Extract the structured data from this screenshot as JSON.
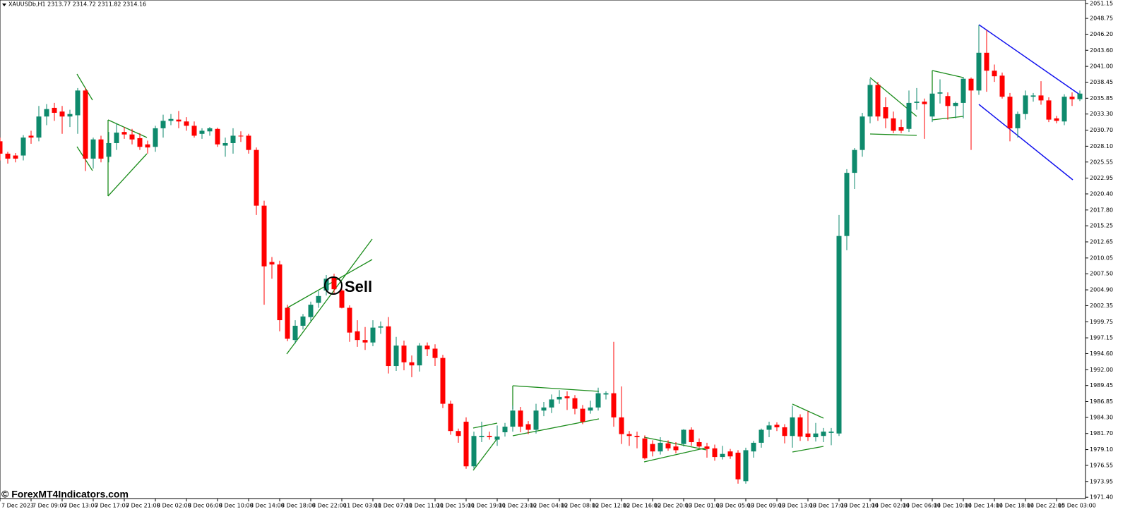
{
  "chart_data": {
    "type": "candlestick",
    "header": "XAUUSDb,H1  2313.77 2314.72 2311.82 2314.16",
    "annotation": "Sell",
    "watermark": "© ForexMT4Indicators.com",
    "up_color": "#0e8a6c",
    "down_color": "#ff0000",
    "grid": false,
    "ylim": [
      1971.19,
      2051.72
    ],
    "yticks": [
      2051.15,
      2048.75,
      {
        "value": 2046.2,
        "label": "2046.20"
      },
      {
        "value": 2043.6,
        "label": "2043.60"
      },
      {
        "value": 2041,
        "label": "2041.00"
      },
      2038.45,
      2035.85,
      {
        "value": 2033.3,
        "label": "2033.30"
      },
      {
        "value": 2030.7,
        "label": "2030.70"
      },
      {
        "value": 2028.1,
        "label": "2028.10"
      },
      2025.55,
      2022.95,
      {
        "value": 2020.4,
        "label": "2020.40"
      },
      {
        "value": 2017.8,
        "label": "2017.80"
      },
      2015.25,
      2012.65,
      2010.05,
      {
        "value": 2007.5,
        "label": "2007.50"
      },
      {
        "value": 2004.9,
        "label": "2004.90"
      },
      2002.35,
      1999.75,
      1997.15,
      {
        "value": 1994.6,
        "label": "1994.60"
      },
      {
        "value": 1992,
        "label": "1992.00"
      },
      1989.45,
      1986.85,
      {
        "value": 1984.3,
        "label": "1984.30"
      },
      {
        "value": 1981.7,
        "label": "1981.70"
      },
      {
        "value": 1979.1,
        "label": "1979.10"
      },
      1976.55,
      1973.95,
      {
        "value": 1971.4,
        "label": "1971.40"
      }
    ],
    "categories": [
      "7 Dec 2023",
      null,
      null,
      null,
      "7 Dec 09:00",
      null,
      null,
      null,
      "7 Dec 13:00",
      null,
      null,
      null,
      "7 Dec 17:00",
      null,
      null,
      null,
      "7 Dec 21:00",
      null,
      null,
      null,
      "8 Dec 02:00",
      null,
      null,
      null,
      "8 Dec 06:00",
      null,
      null,
      null,
      "8 Dec 10:00",
      null,
      null,
      null,
      "8 Dec 14:00",
      null,
      null,
      null,
      "8 Dec 18:00",
      null,
      null,
      null,
      "8 Dec 22:00",
      null,
      null,
      null,
      "11 Dec 03:00",
      null,
      null,
      null,
      "11 Dec 07:00",
      null,
      null,
      null,
      "11 Dec 11:00",
      null,
      null,
      null,
      "11 Dec 15:00",
      null,
      null,
      null,
      "11 Dec 19:00",
      null,
      null,
      null,
      "11 Dec 23:00",
      null,
      null,
      null,
      "12 Dec 04:00",
      null,
      null,
      null,
      "12 Dec 08:00",
      null,
      null,
      null,
      "12 Dec 12:00",
      null,
      null,
      null,
      "12 Dec 16:00",
      null,
      null,
      null,
      "12 Dec 20:00",
      null,
      null,
      null,
      "13 Dec 01:00",
      null,
      null,
      null,
      "13 Dec 05:00",
      null,
      null,
      null,
      "13 Dec 09:00",
      null,
      null,
      null,
      "13 Dec 13:00",
      null,
      null,
      null,
      "13 Dec 17:00",
      null,
      null,
      null,
      "13 Dec 21:00",
      null,
      null,
      null,
      "14 Dec 02:00",
      null,
      null,
      null,
      "14 Dec 06:00",
      null,
      null,
      null,
      "14 Dec 10:00",
      null,
      null,
      null,
      "14 Dec 14:00",
      null,
      null,
      null,
      "14 Dec 18:00",
      null,
      null,
      null,
      "14 Dec 22:00",
      null,
      null,
      null,
      "15 Dec 03:00",
      null,
      null,
      null
    ],
    "open": [
      2028.9,
      2026.9,
      2026.6,
      2026.6,
      2029.8,
      2029.5,
      2032.9,
      2034.3,
      2033.7,
      2032.9,
      2033.1,
      2037.1,
      2026.1,
      2029.2,
      2026.4,
      2028.6,
      2030.4,
      2030.0,
      2029.4,
      2028.4,
      2028.0,
      2031.0,
      2032.2,
      2032.4,
      2032.1,
      2031.4,
      2030.1,
      2030.5,
      2030.9,
      2028.2,
      2028.6,
      2029.8,
      2029.8,
      2027.5,
      2018.5,
      2009.4,
      2009.0,
      2002.0,
      1996.8,
      1999.1,
      2000.5,
      2002.8,
      2004.8,
      2007.0,
      2004.8,
      2002.0,
      1998.2,
      1996.8,
      1996.4,
      1998.8,
      1999.0,
      1992.6,
      1995.9,
      1993.2,
      1992.7,
      1995.9,
      1995.4,
      1993.9,
      1986.5,
      1982.1,
      1983.6,
      1976.4,
      1981.1,
      1981.3,
      1980.7,
      1981.9,
      1982.8,
      1985.4,
      1983.2,
      1982.3,
      1985.4,
      1985.9,
      1987.2,
      1987.7,
      1987.4,
      1985.7,
      1985.4,
      1985.9,
      1988.0,
      1988.2,
      1984.3,
      1981.6,
      1981.3,
      1980.9,
      1980.0,
      1978.8,
      1980.1,
      1979.6,
      1980.0,
      1982.3,
      1980.3,
      1979.6,
      1979.3,
      1977.9,
      1978.8,
      1978.6,
      1974.0,
      1978.8,
      1980.2,
      1982.3,
      1983.1,
      1982.7,
      1981.3,
      1984.3,
      1981.7,
      1981.1,
      1981.3,
      1981.8,
      1981.7,
      2013.6,
      2023.8,
      2027.5,
      2032.9,
      2038.0,
      2034.4,
      2032.6,
      2031.2,
      2030.9,
      2035.1,
      2035.3,
      2032.9,
      2036.6,
      2036.2,
      2034.6,
      2035.1,
      2039.0,
      2037.1,
      2043.2,
      2040.3,
      2039.5,
      2036.1,
      2031.0,
      2033.3,
      2036.1,
      2036.3,
      2035.5,
      2032.6,
      2032.1,
      2036.1,
      2035.7
    ],
    "high": [
      2029.5,
      2027.2,
      2027.0,
      2029.9,
      2030.6,
      2034.6,
      2034.9,
      2035.1,
      2034.6,
      2034.0,
      2037.5,
      2037.5,
      2029.5,
      2029.8,
      2030.4,
      2031.8,
      2031.2,
      2030.9,
      2030.2,
      2029.0,
      2031.4,
      2033.2,
      2033.3,
      2033.8,
      2032.8,
      2032.1,
      2031.0,
      2031.2,
      2031.1,
      2029.5,
      2031.0,
      2030.5,
      2030.1,
      2027.9,
      2019.3,
      2010.2,
      2009.6,
      2002.5,
      2000.0,
      2001.0,
      2003.0,
      2004.7,
      2007.3,
      2007.5,
      2005.1,
      2002.4,
      2000.0,
      1998.9,
      2000.0,
      1999.8,
      2000.5,
      1997.3,
      1996.7,
      1994.3,
      1996.3,
      1996.4,
      1996.1,
      1994.4,
      1987.0,
      1982.5,
      1984.3,
      1982.0,
      1983.6,
      1982.0,
      1983.0,
      1983.4,
      1986.2,
      1986.0,
      1983.7,
      1986.5,
      1986.8,
      1988.0,
      1988.7,
      1988.5,
      1987.9,
      1986.3,
      1987.0,
      1989.1,
      1988.5,
      1996.5,
      1989.3,
      1982.1,
      1982.0,
      1981.4,
      1980.6,
      1981.1,
      1980.6,
      1980.3,
      1982.4,
      1982.7,
      1980.9,
      1980.2,
      1979.9,
      1979.7,
      1979.2,
      1979.0,
      1979.4,
      1980.5,
      1982.5,
      1983.6,
      1983.5,
      1983.2,
      1986.2,
      1984.8,
      1985.3,
      1983.4,
      1982.6,
      1982.6,
      2017.0,
      2024.4,
      2027.8,
      2033.5,
      2039.0,
      2038.5,
      2036.0,
      2033.7,
      2032.4,
      2037.1,
      2037.5,
      2035.8,
      2037.1,
      2038.9,
      2036.8,
      2035.3,
      2039.3,
      2039.2,
      2047.7,
      2046.9,
      2041.3,
      2040.0,
      2036.7,
      2033.7,
      2037.1,
      2036.7,
      2038.6,
      2036.0,
      2033.0,
      2036.5,
      2036.8,
      2037.1
    ],
    "low": [
      2025.8,
      2025.3,
      2025.5,
      2025.8,
      2028.5,
      2028.9,
      2031.5,
      2032.2,
      2030.1,
      2031.2,
      2030.1,
      2024.1,
      2024.5,
      2025.5,
      2025.5,
      2027.5,
      2029.3,
      2028.4,
      2027.5,
      2026.9,
      2027.2,
      2029.5,
      2031.5,
      2031.0,
      2030.6,
      2029.5,
      2029.3,
      2029.8,
      2028.0,
      2026.4,
      2026.9,
      2028.8,
      2026.9,
      2017.0,
      2002.5,
      2006.7,
      1998.2,
      1996.6,
      1996.2,
      1998.5,
      1999.9,
      2002.0,
      2004.0,
      2004.2,
      2001.9,
      1996.5,
      1995.7,
      1995.2,
      1995.8,
      1997.8,
      1991.4,
      1991.8,
      1991.9,
      1990.8,
      1991.7,
      1994.2,
      1992.6,
      1985.8,
      1981.5,
      1980.2,
      1976.0,
      1976.0,
      1980.3,
      1980.7,
      1979.7,
      1981.2,
      1982.0,
      1981.9,
      1981.6,
      1981.7,
      1984.5,
      1985.0,
      1986.5,
      1985.5,
      1984.8,
      1983.2,
      1984.9,
      1985.4,
      1987.2,
      1982.8,
      1980.0,
      1979.7,
      1979.3,
      1977.5,
      1978.0,
      1978.3,
      1978.9,
      1978.5,
      1979.6,
      1979.7,
      1979.4,
      1977.8,
      1977.3,
      1977.5,
      1977.6,
      1973.6,
      1973.6,
      1977.8,
      1979.4,
      1981.1,
      1982.1,
      1980.1,
      1979.4,
      1980.5,
      1980.5,
      1980.4,
      1980.3,
      1979.8,
      1981.3,
      2011.3,
      2021.2,
      2026.4,
      2031.8,
      2032.2,
      2031.0,
      2030.2,
      2030.2,
      2030.4,
      2034.0,
      2029.3,
      2032.0,
      2035.0,
      2032.4,
      2032.6,
      2032.6,
      2027.5,
      2036.4,
      2036.9,
      2038.5,
      2035.8,
      2028.9,
      2029.5,
      2032.4,
      2035.3,
      2034.8,
      2032.0,
      2031.8,
      2031.5,
      2034.6,
      2035.4
    ],
    "close": [
      2026.9,
      2026.1,
      2026.1,
      2029.5,
      2029.5,
      2032.9,
      2034.1,
      2033.5,
      2032.9,
      2033.3,
      2037.1,
      2026.1,
      2029.2,
      2026.1,
      2028.6,
      2030.3,
      2030.0,
      2029.2,
      2028.0,
      2027.9,
      2031.0,
      2032.2,
      2032.5,
      2032.1,
      2031.4,
      2029.8,
      2030.6,
      2031.0,
      2028.4,
      2028.6,
      2029.8,
      2029.7,
      2027.5,
      2018.5,
      2008.7,
      2009.0,
      2000.0,
      1997.0,
      1999.1,
      2000.6,
      2002.5,
      2003.9,
      2006.7,
      2005.0,
      2002.0,
      1998.0,
      1996.8,
      1996.4,
      1998.8,
      1999.0,
      1992.6,
      1995.9,
      1993.2,
      1992.7,
      1995.9,
      1995.3,
      1993.9,
      1986.5,
      1982.1,
      1981.3,
      1976.4,
      1981.3,
      1981.3,
      1981.1,
      1981.2,
      1982.8,
      1985.4,
      1982.8,
      1982.3,
      1985.4,
      1985.9,
      1987.2,
      1987.6,
      1987.4,
      1985.7,
      1983.6,
      1985.9,
      1988.2,
      1988.2,
      1984.3,
      1981.6,
      1981.3,
      1981.1,
      1977.7,
      1978.8,
      1980.2,
      1979.3,
      1979.0,
      1982.3,
      1980.3,
      1979.6,
      1979.2,
      1977.9,
      1978.4,
      1978.0,
      1974.3,
      1979.0,
      1980.2,
      1982.3,
      1983.0,
      1982.7,
      1981.3,
      1984.3,
      1981.2,
      1981.1,
      1981.7,
      1982.0,
      1982.0,
      2013.6,
      2023.8,
      2027.5,
      2032.9,
      2038.0,
      2032.9,
      2032.6,
      2030.6,
      2030.6,
      2035.1,
      2035.3,
      2034.9,
      2036.6,
      2036.8,
      2034.6,
      2035.1,
      2039.0,
      2037.1,
      2043.2,
      2040.3,
      2039.4,
      2036.1,
      2031.0,
      2033.3,
      2036.3,
      2036.3,
      2035.5,
      2032.4,
      2032.2,
      2036.1,
      2035.7,
      2036.6
    ]
  }
}
